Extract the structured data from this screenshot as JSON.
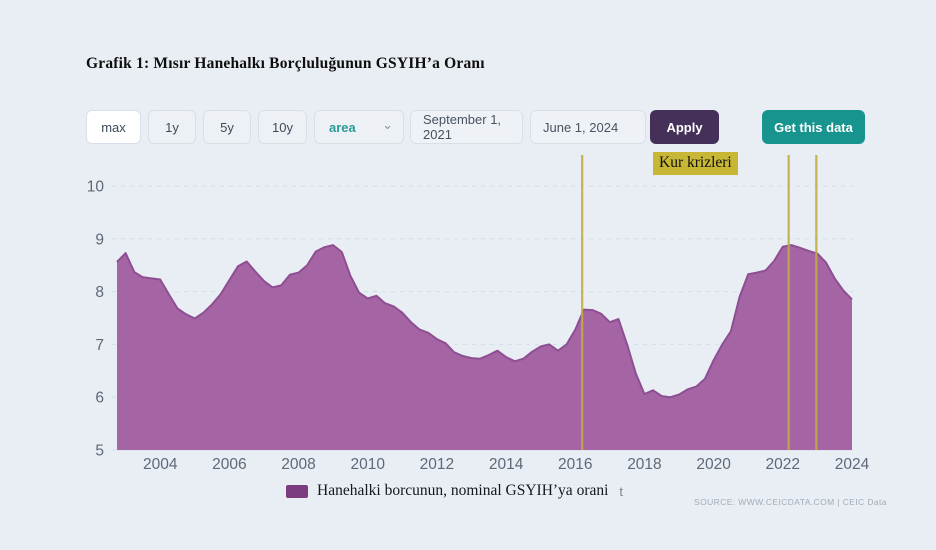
{
  "title": "Grafik 1: Mısır Hanehalkı Borçluluğunun GSYIH’a Oranı",
  "toolbar": {
    "range_buttons": [
      {
        "label": "max",
        "active": true
      },
      {
        "label": "1y",
        "active": false
      },
      {
        "label": "5y",
        "active": false
      },
      {
        "label": "10y",
        "active": false
      }
    ],
    "chart_type_select": {
      "value": "area"
    },
    "date_from": "September 1, 2021",
    "date_to": "June 1, 2024",
    "apply_label": "Apply",
    "get_data_label": "Get this data"
  },
  "annotation": {
    "label": "Kur krizleri",
    "highlight_color": "#c7b735"
  },
  "legend": {
    "label": "Hanehalki borcunun, nominal GSYIH’ya orani",
    "swatch_color": "#7c3c80",
    "residual_text": "t"
  },
  "source": "SOURCE: WWW.CEICDATA.COM | CEIC Data",
  "colors": {
    "page_background": "#e9eef5",
    "area_fill": "#a565a5",
    "line": "#8d4f91",
    "event_line": "#bfae3c",
    "grid": "#d6dce5",
    "axis_text": "#5e6877",
    "accent_teal": "#17948e",
    "accent_purple": "#443059"
  },
  "chart_data": {
    "type": "area",
    "title": "Grafik 1: Mısır Hanehalkı Borçluluğunun GSYIH’a Oranı",
    "series_name": "Hanehalki borcunun, nominal GSYIH’ya orani",
    "xlabel": "",
    "ylabel": "",
    "xlim": [
      2002.78,
      2024.03
    ],
    "ylim": [
      5,
      10
    ],
    "x_ticks": [
      2004,
      2006,
      2008,
      2010,
      2012,
      2014,
      2016,
      2018,
      2020,
      2022,
      2024
    ],
    "y_ticks": [
      5,
      6,
      7,
      8,
      9,
      10
    ],
    "grid": "horizontal-dashed",
    "legend_position": "bottom",
    "x": [
      2002.75,
      2003.0,
      2003.25,
      2003.5,
      2003.75,
      2004.0,
      2004.25,
      2004.5,
      2004.75,
      2005.0,
      2005.25,
      2005.5,
      2005.75,
      2006.0,
      2006.25,
      2006.5,
      2006.75,
      2007.0,
      2007.25,
      2007.5,
      2007.75,
      2008.0,
      2008.25,
      2008.5,
      2008.75,
      2009.0,
      2009.25,
      2009.5,
      2009.75,
      2010.0,
      2010.25,
      2010.5,
      2010.75,
      2011.0,
      2011.25,
      2011.5,
      2011.75,
      2012.0,
      2012.25,
      2012.5,
      2012.75,
      2013.0,
      2013.25,
      2013.5,
      2013.75,
      2014.0,
      2014.25,
      2014.5,
      2014.75,
      2015.0,
      2015.25,
      2015.5,
      2015.75,
      2016.0,
      2016.25,
      2016.5,
      2016.75,
      2017.0,
      2017.25,
      2017.5,
      2017.75,
      2018.0,
      2018.25,
      2018.5,
      2018.75,
      2019.0,
      2019.25,
      2019.5,
      2019.75,
      2020.0,
      2020.25,
      2020.5,
      2020.75,
      2021.0,
      2021.25,
      2021.5,
      2021.75,
      2022.0,
      2022.25,
      2022.5,
      2022.75,
      2023.0,
      2023.25,
      2023.5,
      2023.75,
      2024.0
    ],
    "values": [
      8.56,
      8.73,
      8.37,
      8.27,
      8.25,
      8.23,
      7.95,
      7.68,
      7.57,
      7.49,
      7.6,
      7.76,
      7.95,
      8.22,
      8.48,
      8.57,
      8.38,
      8.2,
      8.08,
      8.12,
      8.32,
      8.36,
      8.5,
      8.76,
      8.84,
      8.88,
      8.75,
      8.3,
      7.98,
      7.87,
      7.92,
      7.78,
      7.72,
      7.6,
      7.42,
      7.28,
      7.22,
      7.1,
      7.02,
      6.85,
      6.78,
      6.74,
      6.73,
      6.8,
      6.88,
      6.76,
      6.68,
      6.73,
      6.86,
      6.96,
      7.0,
      6.88,
      7.0,
      7.28,
      7.66,
      7.65,
      7.58,
      7.42,
      7.48,
      7.0,
      6.45,
      6.06,
      6.13,
      6.02,
      6.0,
      6.05,
      6.15,
      6.2,
      6.35,
      6.7,
      7.0,
      7.25,
      7.9,
      8.33,
      8.36,
      8.4,
      8.58,
      8.85,
      8.88,
      8.83,
      8.77,
      8.72,
      8.55,
      8.25,
      8.02,
      7.85
    ],
    "event_lines": {
      "label": "Kur krizleri",
      "years": [
        2016.2,
        2022.17,
        2022.97
      ],
      "color": "#bfae3c"
    }
  }
}
